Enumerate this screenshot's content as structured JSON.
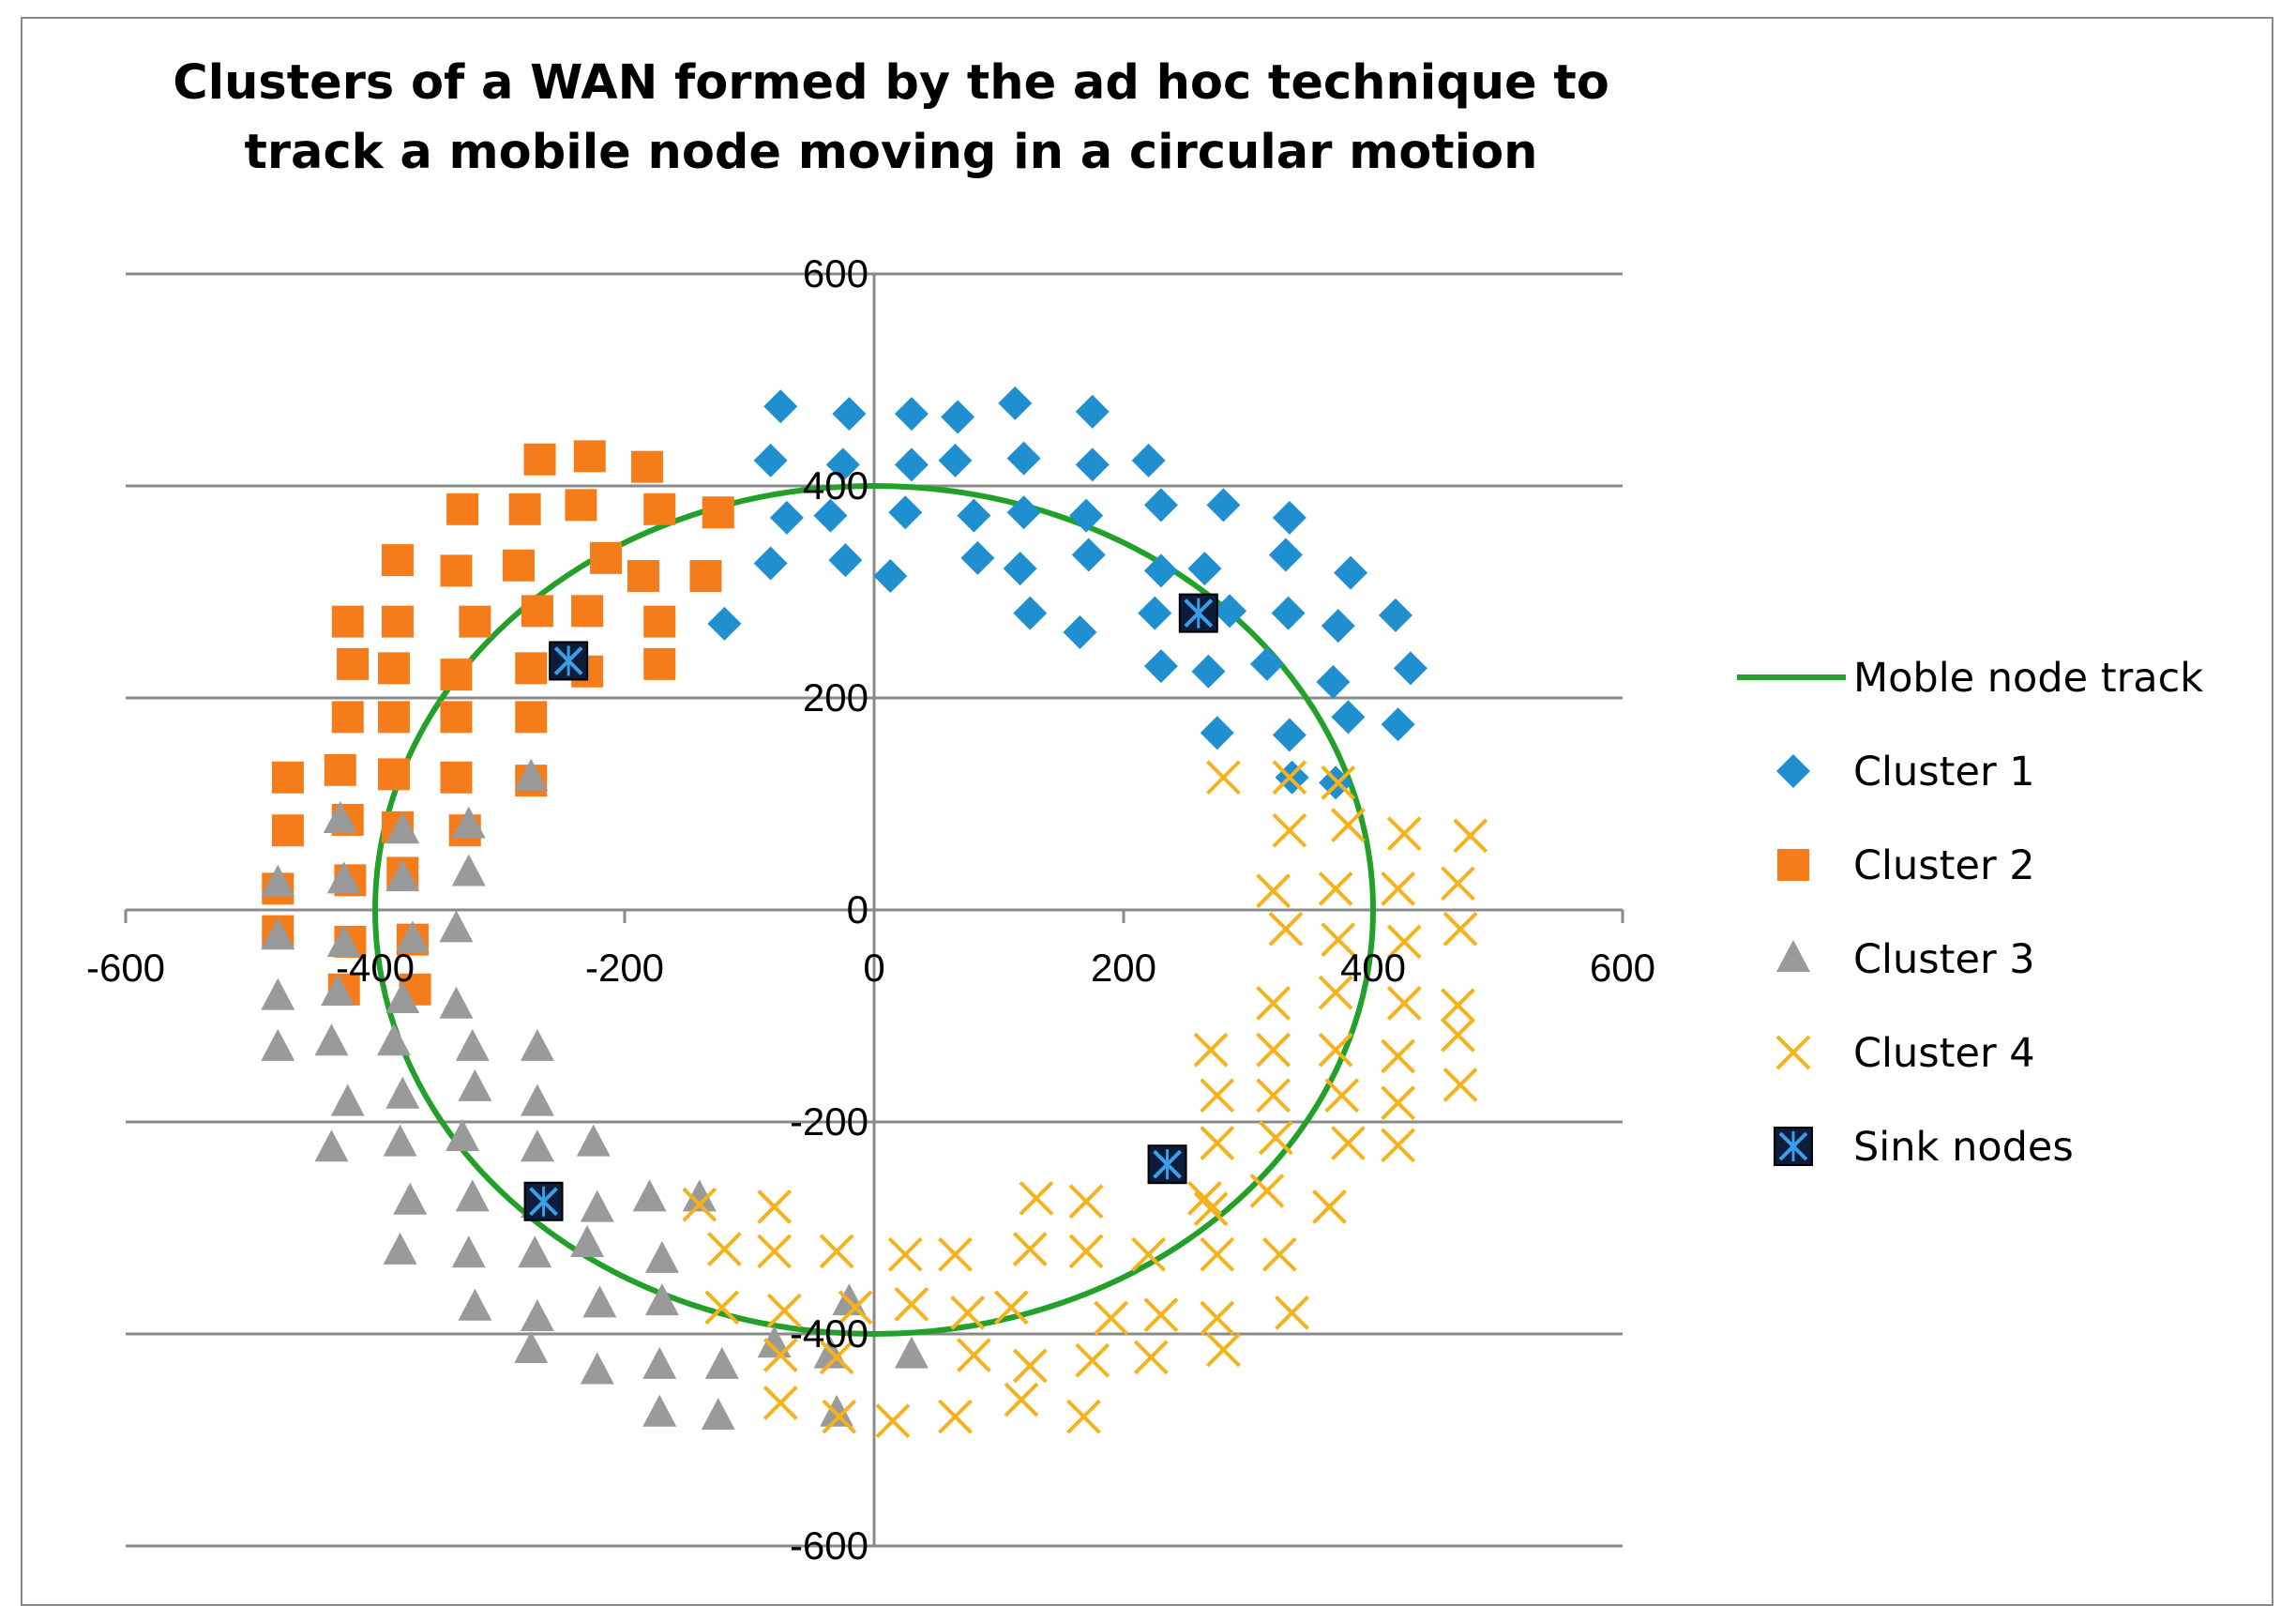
{
  "chart_data": {
    "type": "scatter",
    "title": "Clusters of a WAN formed by the ad hoc technique to track a mobile node moving in a circular motion",
    "xlim": [
      -600,
      600
    ],
    "ylim": [
      -600,
      600
    ],
    "x_ticks": [
      -600,
      -400,
      -200,
      0,
      200,
      400,
      600
    ],
    "y_ticks": [
      -600,
      -400,
      -200,
      0,
      200,
      400,
      600
    ],
    "grid": "horizontal",
    "legend_position": "right",
    "colors": {
      "track": "#22a02a",
      "cluster1": "#1f8fd0",
      "cluster2": "#f57c1a",
      "cluster3": "#9a9a9a",
      "cluster4": "#f6b21c",
      "sink_fill": "#0c1c3a",
      "sink_x": "#3b9ee6"
    },
    "track": {
      "name": "Moble node track",
      "center": [
        0,
        0
      ],
      "radius": 400
    },
    "series": [
      {
        "name": "Cluster 1",
        "marker": "diamond",
        "color": "#1f8fd0",
        "points": [
          [
            -75,
            475
          ],
          [
            -20,
            468
          ],
          [
            30,
            468
          ],
          [
            67,
            465
          ],
          [
            113,
            478
          ],
          [
            175,
            470
          ],
          [
            -83,
            424
          ],
          [
            -25,
            420
          ],
          [
            30,
            420
          ],
          [
            65,
            424
          ],
          [
            120,
            426
          ],
          [
            175,
            420
          ],
          [
            220,
            424
          ],
          [
            -70,
            370
          ],
          [
            -35,
            372
          ],
          [
            25,
            375
          ],
          [
            80,
            372
          ],
          [
            120,
            375
          ],
          [
            170,
            372
          ],
          [
            230,
            382
          ],
          [
            280,
            382
          ],
          [
            333,
            370
          ],
          [
            -83,
            327
          ],
          [
            -23,
            330
          ],
          [
            13,
            315
          ],
          [
            83,
            332
          ],
          [
            117,
            322
          ],
          [
            172,
            335
          ],
          [
            230,
            320
          ],
          [
            265,
            322
          ],
          [
            330,
            335
          ],
          [
            382,
            318
          ],
          [
            -120,
            270
          ],
          [
            125,
            280
          ],
          [
            165,
            262
          ],
          [
            225,
            280
          ],
          [
            285,
            282
          ],
          [
            332,
            280
          ],
          [
            372,
            268
          ],
          [
            418,
            278
          ],
          [
            230,
            230
          ],
          [
            268,
            225
          ],
          [
            315,
            232
          ],
          [
            368,
            215
          ],
          [
            430,
            228
          ],
          [
            275,
            167
          ],
          [
            333,
            165
          ],
          [
            380,
            182
          ],
          [
            420,
            175
          ],
          [
            335,
            125
          ],
          [
            370,
            120
          ]
        ]
      },
      {
        "name": "Cluster 2",
        "marker": "square",
        "color": "#f57c1a",
        "points": [
          [
            -268,
            425
          ],
          [
            -228,
            428
          ],
          [
            -182,
            418
          ],
          [
            -330,
            378
          ],
          [
            -280,
            378
          ],
          [
            -235,
            382
          ],
          [
            -172,
            378
          ],
          [
            -125,
            375
          ],
          [
            -382,
            330
          ],
          [
            -335,
            320
          ],
          [
            -285,
            325
          ],
          [
            -215,
            332
          ],
          [
            -185,
            315
          ],
          [
            -135,
            315
          ],
          [
            -422,
            272
          ],
          [
            -382,
            272
          ],
          [
            -320,
            272
          ],
          [
            -270,
            282
          ],
          [
            -230,
            282
          ],
          [
            -172,
            272
          ],
          [
            -418,
            232
          ],
          [
            -385,
            228
          ],
          [
            -335,
            222
          ],
          [
            -275,
            228
          ],
          [
            -230,
            225
          ],
          [
            -172,
            232
          ],
          [
            -422,
            182
          ],
          [
            -385,
            182
          ],
          [
            -335,
            182
          ],
          [
            -275,
            182
          ],
          [
            -470,
            125
          ],
          [
            -428,
            132
          ],
          [
            -385,
            128
          ],
          [
            -335,
            125
          ],
          [
            -275,
            122
          ],
          [
            -470,
            75
          ],
          [
            -422,
            85
          ],
          [
            -382,
            78
          ],
          [
            -328,
            75
          ],
          [
            -478,
            20
          ],
          [
            -420,
            28
          ],
          [
            -378,
            35
          ],
          [
            -478,
            -20
          ],
          [
            -420,
            -30
          ],
          [
            -370,
            -28
          ],
          [
            -425,
            -75
          ],
          [
            -368,
            -75
          ]
        ]
      },
      {
        "name": "Cluster 3",
        "marker": "triangle",
        "color": "#9a9a9a",
        "points": [
          [
            -275,
            125
          ],
          [
            -428,
            85
          ],
          [
            -378,
            75
          ],
          [
            -325,
            80
          ],
          [
            -478,
            25
          ],
          [
            -425,
            28
          ],
          [
            -378,
            30
          ],
          [
            -325,
            35
          ],
          [
            -478,
            -25
          ],
          [
            -425,
            -32
          ],
          [
            -370,
            -28
          ],
          [
            -335,
            -18
          ],
          [
            -478,
            -82
          ],
          [
            -430,
            -78
          ],
          [
            -378,
            -85
          ],
          [
            -335,
            -90
          ],
          [
            -478,
            -130
          ],
          [
            -435,
            -125
          ],
          [
            -385,
            -125
          ],
          [
            -322,
            -130
          ],
          [
            -270,
            -130
          ],
          [
            -422,
            -182
          ],
          [
            -378,
            -175
          ],
          [
            -320,
            -168
          ],
          [
            -270,
            -182
          ],
          [
            -435,
            -225
          ],
          [
            -380,
            -220
          ],
          [
            -330,
            -215
          ],
          [
            -270,
            -225
          ],
          [
            -225,
            -220
          ],
          [
            -372,
            -275
          ],
          [
            -322,
            -272
          ],
          [
            -270,
            -278
          ],
          [
            -222,
            -282
          ],
          [
            -180,
            -272
          ],
          [
            -140,
            -272
          ],
          [
            -380,
            -322
          ],
          [
            -325,
            -325
          ],
          [
            -272,
            -325
          ],
          [
            -230,
            -315
          ],
          [
            -170,
            -330
          ],
          [
            -320,
            -375
          ],
          [
            -270,
            -385
          ],
          [
            -220,
            -372
          ],
          [
            -170,
            -370
          ],
          [
            -275,
            -415
          ],
          [
            -222,
            -435
          ],
          [
            -172,
            -430
          ],
          [
            -122,
            -430
          ],
          [
            -172,
            -475
          ],
          [
            -125,
            -478
          ],
          [
            -80,
            -410
          ],
          [
            -35,
            -420
          ],
          [
            -20,
            -370
          ],
          [
            30,
            -420
          ],
          [
            -30,
            -475
          ]
        ]
      },
      {
        "name": "Cluster 4",
        "marker": "x",
        "color": "#f6b21c",
        "points": [
          [
            280,
            125
          ],
          [
            333,
            125
          ],
          [
            372,
            120
          ],
          [
            333,
            75
          ],
          [
            380,
            80
          ],
          [
            425,
            72
          ],
          [
            478,
            70
          ],
          [
            320,
            18
          ],
          [
            370,
            20
          ],
          [
            420,
            20
          ],
          [
            468,
            25
          ],
          [
            330,
            -18
          ],
          [
            372,
            -28
          ],
          [
            425,
            -30
          ],
          [
            470,
            -18
          ],
          [
            320,
            -88
          ],
          [
            370,
            -78
          ],
          [
            425,
            -88
          ],
          [
            468,
            -90
          ],
          [
            270,
            -132
          ],
          [
            320,
            -132
          ],
          [
            370,
            -132
          ],
          [
            420,
            -138
          ],
          [
            468,
            -118
          ],
          [
            275,
            -175
          ],
          [
            320,
            -175
          ],
          [
            375,
            -175
          ],
          [
            420,
            -182
          ],
          [
            470,
            -165
          ],
          [
            275,
            -220
          ],
          [
            322,
            -215
          ],
          [
            380,
            -220
          ],
          [
            420,
            -222
          ],
          [
            265,
            -272
          ],
          [
            315,
            -265
          ],
          [
            365,
            -280
          ],
          [
            130,
            -272
          ],
          [
            170,
            -275
          ],
          [
            270,
            -282
          ],
          [
            -140,
            -278
          ],
          [
            -80,
            -280
          ],
          [
            -120,
            -320
          ],
          [
            -80,
            -322
          ],
          [
            -30,
            -322
          ],
          [
            25,
            -325
          ],
          [
            65,
            -325
          ],
          [
            125,
            -320
          ],
          [
            170,
            -322
          ],
          [
            220,
            -325
          ],
          [
            275,
            -325
          ],
          [
            325,
            -325
          ],
          [
            -122,
            -375
          ],
          [
            -72,
            -378
          ],
          [
            -15,
            -375
          ],
          [
            30,
            -372
          ],
          [
            75,
            -380
          ],
          [
            110,
            -375
          ],
          [
            190,
            -385
          ],
          [
            230,
            -382
          ],
          [
            275,
            -385
          ],
          [
            335,
            -380
          ],
          [
            -75,
            -420
          ],
          [
            -30,
            -422
          ],
          [
            80,
            -420
          ],
          [
            125,
            -430
          ],
          [
            175,
            -425
          ],
          [
            222,
            -422
          ],
          [
            280,
            -415
          ],
          [
            -75,
            -465
          ],
          [
            -28,
            -478
          ],
          [
            15,
            -482
          ],
          [
            65,
            -478
          ],
          [
            118,
            -462
          ],
          [
            168,
            -478
          ]
        ]
      },
      {
        "name": "Sink nodes",
        "marker": "sink",
        "color": "#0c1c3a",
        "points": [
          [
            -245,
            235
          ],
          [
            260,
            280
          ],
          [
            -265,
            -275
          ],
          [
            235,
            -240
          ]
        ]
      }
    ]
  },
  "legend": [
    {
      "label": "Moble node track",
      "key": "track"
    },
    {
      "label": "Cluster 1",
      "key": "s0"
    },
    {
      "label": "Cluster 2",
      "key": "s1"
    },
    {
      "label": "Cluster 3",
      "key": "s2"
    },
    {
      "label": "Cluster 4",
      "key": "s3"
    },
    {
      "label": "Sink nodes",
      "key": "s4"
    }
  ]
}
